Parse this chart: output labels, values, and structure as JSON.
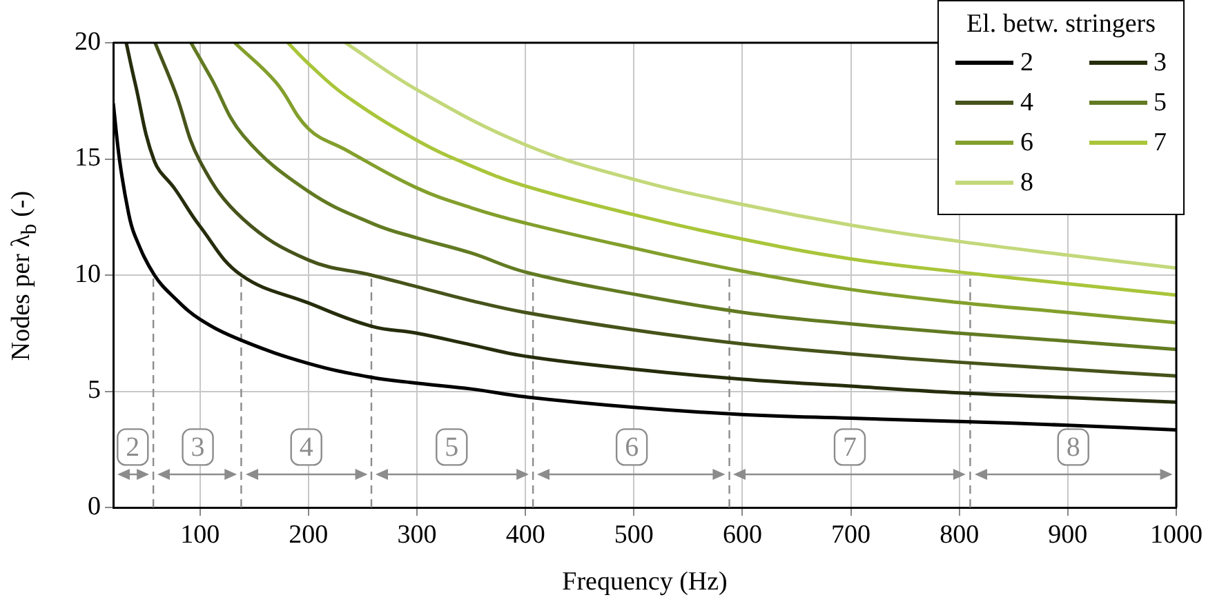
{
  "chart_data": {
    "type": "line",
    "xlabel": "Frequency (Hz)",
    "ylabel": "Nodes per λ$_{b}$ (-)",
    "legend_title": "El. betw. stringers",
    "legend": "top right",
    "grid": true,
    "xlim": [
      20,
      1000
    ],
    "xticks": [
      100,
      200,
      300,
      400,
      500,
      600,
      700,
      800,
      900,
      1000
    ],
    "ylim": [
      0,
      20
    ],
    "yticks": [
      0,
      5,
      10,
      15,
      20
    ],
    "series": [
      {
        "name": "2",
        "color": "#000000",
        "x": [
          20,
          26,
          34,
          40,
          58,
          77,
          100,
          138,
          200,
          258,
          300,
          350,
          400,
          500,
          600,
          700,
          800,
          900,
          1000
        ],
        "values": [
          17.4,
          14.9,
          12.7,
          11.7,
          10.0,
          9.0,
          8.1,
          7.2,
          6.2,
          5.6,
          5.35,
          5.1,
          4.76,
          4.31,
          4.0,
          3.84,
          3.7,
          3.54,
          3.34
        ]
      },
      {
        "name": "3",
        "color": "#262d0c",
        "x": [
          32,
          40,
          58,
          77,
          100,
          138,
          200,
          258,
          300,
          350,
          400,
          500,
          600,
          700,
          800,
          900,
          1000
        ],
        "values": [
          20,
          18.3,
          14.9,
          13.7,
          12.1,
          10.0,
          8.8,
          7.8,
          7.5,
          7.0,
          6.51,
          5.95,
          5.52,
          5.22,
          4.93,
          4.73,
          4.53
        ]
      },
      {
        "name": "4",
        "color": "#46531a",
        "x": [
          58.6,
          77,
          100,
          140,
          200,
          258,
          300,
          350,
          400,
          500,
          600,
          700,
          800,
          900,
          1000
        ],
        "values": [
          20,
          17.9,
          14.9,
          12.4,
          10.65,
          10.0,
          9.5,
          8.9,
          8.39,
          7.64,
          7.04,
          6.61,
          6.25,
          5.95,
          5.66
        ]
      },
      {
        "name": "5",
        "color": "#627a22",
        "x": [
          91.7,
          110,
          140,
          200,
          260,
          300,
          350,
          400,
          500,
          600,
          700,
          800,
          900,
          1000
        ],
        "values": [
          20,
          18.5,
          16.0,
          13.6,
          12.2,
          11.6,
          10.95,
          10.13,
          9.18,
          8.4,
          7.9,
          7.5,
          7.16,
          6.8
        ]
      },
      {
        "name": "6",
        "color": "#839f2c",
        "x": [
          132,
          170,
          200,
          234,
          300,
          350,
          400,
          500,
          600,
          700,
          800,
          900,
          1000
        ],
        "values": [
          20,
          18.3,
          16.3,
          15.4,
          13.75,
          12.9,
          12.24,
          11.16,
          10.17,
          9.38,
          8.82,
          8.39,
          7.95
        ]
      },
      {
        "name": "7",
        "color": "#a9c53a",
        "x": [
          181,
          200,
          234,
          300,
          350,
          400,
          500,
          600,
          700,
          800,
          900,
          1000
        ],
        "values": [
          20,
          19.1,
          17.73,
          15.8,
          14.7,
          13.83,
          12.6,
          11.55,
          10.7,
          10.13,
          9.63,
          9.14
        ]
      },
      {
        "name": "8",
        "color": "#c3d87a",
        "x": [
          234,
          300,
          400,
          500,
          600,
          700,
          800,
          900,
          1000
        ],
        "values": [
          20,
          17.98,
          15.61,
          14.12,
          13.04,
          12.15,
          11.45,
          10.86,
          10.3
        ]
      }
    ],
    "ref_lines": [
      {
        "axis": "x",
        "value": 57,
        "line_style": "dashed",
        "color": "#8c8c8c"
      },
      {
        "axis": "x",
        "value": 138,
        "line_style": "dashed",
        "color": "#8c8c8c"
      },
      {
        "axis": "x",
        "value": 258,
        "line_style": "dashed",
        "color": "#8c8c8c"
      },
      {
        "axis": "x",
        "value": 407,
        "line_style": "dashed",
        "color": "#8c8c8c"
      },
      {
        "axis": "x",
        "value": 588,
        "line_style": "dashed",
        "color": "#8c8c8c"
      },
      {
        "axis": "x",
        "value": 810,
        "line_style": "dashed",
        "color": "#8c8c8c"
      }
    ],
    "annotations": [
      {
        "text": "2",
        "x": 38,
        "y": 2.6
      },
      {
        "text": "3",
        "x": 98,
        "y": 2.6
      },
      {
        "text": "4",
        "x": 198,
        "y": 2.6
      },
      {
        "text": "5",
        "x": 332,
        "y": 2.6
      },
      {
        "text": "6",
        "x": 498,
        "y": 2.6
      },
      {
        "text": "7",
        "x": 699,
        "y": 2.6
      },
      {
        "text": "8",
        "x": 905,
        "y": 2.6
      }
    ]
  }
}
